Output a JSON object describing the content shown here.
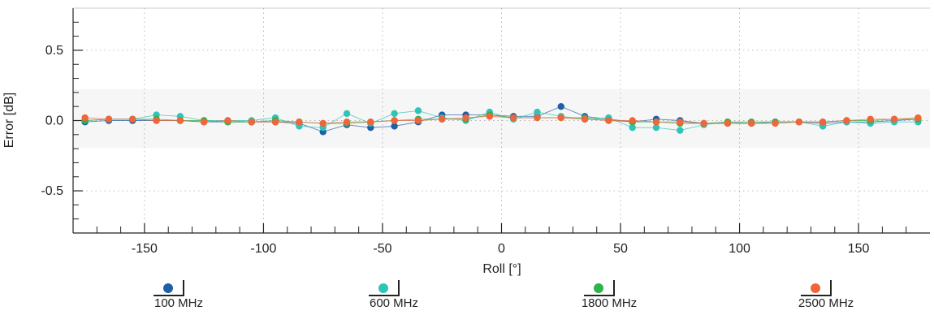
{
  "chart_data": {
    "type": "scatter",
    "xlabel": "Roll [°]",
    "ylabel": "Error [dB]",
    "xlim": [
      -180,
      180
    ],
    "ylim": [
      -0.8,
      0.8
    ],
    "x_ticks": [
      "-150",
      "-100",
      "-50",
      "0",
      "50",
      "100",
      "150"
    ],
    "y_ticks": [
      "0.5",
      "0.0",
      "-0.5"
    ],
    "grid": true,
    "legend_position": "bottom",
    "x": [
      -175,
      -165,
      -155,
      -145,
      -135,
      -125,
      -115,
      -105,
      -95,
      -85,
      -75,
      -65,
      -55,
      -45,
      -35,
      -25,
      -15,
      -5,
      5,
      15,
      25,
      35,
      45,
      55,
      65,
      75,
      85,
      95,
      105,
      115,
      125,
      135,
      145,
      155,
      165,
      175
    ],
    "series": [
      {
        "name": "100 MHz",
        "color": "#1f5fa8",
        "values": [
          -0.01,
          0.0,
          0.0,
          0.0,
          0.0,
          -0.01,
          -0.01,
          -0.01,
          -0.01,
          -0.02,
          -0.08,
          -0.03,
          -0.05,
          -0.04,
          -0.01,
          0.04,
          0.04,
          0.04,
          0.03,
          0.03,
          0.1,
          0.03,
          0.01,
          -0.01,
          0.01,
          0.0,
          -0.02,
          -0.02,
          -0.02,
          -0.01,
          -0.01,
          -0.02,
          -0.01,
          -0.01,
          0.0,
          0.01
        ]
      },
      {
        "name": "600 MHz",
        "color": "#2ec4b6",
        "values": [
          0.0,
          0.01,
          0.01,
          0.04,
          0.03,
          0.0,
          0.0,
          0.0,
          0.02,
          -0.04,
          -0.05,
          0.05,
          -0.02,
          0.05,
          0.07,
          0.02,
          0.0,
          0.06,
          0.01,
          0.06,
          0.03,
          0.01,
          0.02,
          -0.05,
          -0.05,
          -0.07,
          -0.03,
          -0.01,
          -0.02,
          -0.01,
          -0.01,
          -0.04,
          -0.01,
          -0.02,
          -0.01,
          -0.01
        ]
      },
      {
        "name": "1800 MHz",
        "color": "#2db34a",
        "values": [
          0.0,
          0.01,
          0.01,
          0.01,
          0.0,
          0.0,
          -0.01,
          -0.01,
          0.0,
          -0.01,
          -0.02,
          -0.02,
          -0.01,
          0.0,
          0.01,
          0.01,
          0.01,
          0.04,
          0.02,
          0.02,
          0.02,
          0.02,
          0.0,
          -0.01,
          -0.01,
          -0.02,
          -0.02,
          -0.01,
          -0.01,
          -0.01,
          -0.01,
          -0.01,
          0.0,
          0.0,
          0.01,
          0.01
        ]
      },
      {
        "name": "2500 MHz",
        "color": "#f0653a",
        "values": [
          0.02,
          0.01,
          0.01,
          0.0,
          0.0,
          -0.01,
          0.0,
          -0.01,
          -0.01,
          -0.01,
          -0.02,
          -0.01,
          -0.01,
          0.0,
          0.0,
          0.01,
          0.02,
          0.03,
          0.02,
          0.02,
          0.02,
          0.01,
          0.0,
          0.0,
          -0.01,
          -0.01,
          -0.02,
          -0.02,
          -0.02,
          -0.02,
          -0.01,
          -0.01,
          0.0,
          0.01,
          0.01,
          0.02
        ]
      }
    ]
  }
}
